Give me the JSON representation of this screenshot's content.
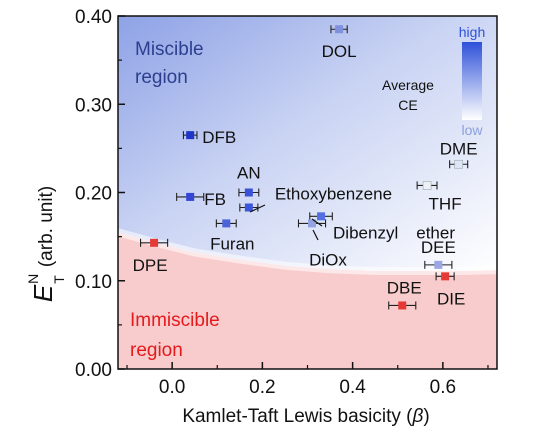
{
  "colors": {
    "high_low_bar_top": "#2e51d9",
    "high_low_bar_bottom": "#ffffff",
    "miscible_label": "#2c3f8f",
    "immiscible_label": "#e41a1c",
    "immiscible_fill": "#f8cccc",
    "pink_marker": "#e53935"
  },
  "chart_data": {
    "type": "scatter",
    "xlabel_prefix": "Kamlet-Taft Lewis basicity (",
    "xlabel_beta": "β",
    "xlabel_suffix": ")",
    "ylabel_main": "E",
    "ylabel_sup": "N",
    "ylabel_sub": "T",
    "ylabel_unit": "(arb. unit)",
    "xlim": [
      -0.12,
      0.72
    ],
    "ylim": [
      0.0,
      0.4
    ],
    "x_ticks": [
      0.0,
      0.2,
      0.4,
      0.6
    ],
    "x_tick_labels": [
      "0.0",
      "0.2",
      "0.4",
      "0.6"
    ],
    "y_ticks": [
      0.0,
      0.1,
      0.2,
      0.3,
      0.4
    ],
    "y_tick_labels": [
      "0.00",
      "0.10",
      "0.20",
      "0.30",
      "0.40"
    ],
    "regions": {
      "miscible_line1": "Miscible",
      "miscible_line2": "region",
      "immiscible_line1": "Immiscible",
      "immiscible_line2": "region"
    },
    "colorbar": {
      "title_line1": "Average",
      "title_line2": "CE",
      "high_label": "high",
      "low_label": "low"
    },
    "boundary_curve": [
      [
        -0.12,
        0.155
      ],
      [
        -0.05,
        0.145
      ],
      [
        0.05,
        0.132
      ],
      [
        0.15,
        0.124
      ],
      [
        0.25,
        0.117
      ],
      [
        0.35,
        0.113
      ],
      [
        0.45,
        0.111
      ],
      [
        0.55,
        0.111
      ],
      [
        0.65,
        0.111
      ],
      [
        0.72,
        0.112
      ]
    ],
    "points": [
      {
        "label": "DOL",
        "x": 0.37,
        "y": 0.385,
        "xerr": 0.018,
        "color": "#8090dd",
        "label_dx": 0,
        "label_dy": 28,
        "anchor": "middle"
      },
      {
        "label": "DFB",
        "x": 0.04,
        "y": 0.265,
        "xerr": 0.015,
        "color": "#1f35c9",
        "label_dx": 12,
        "label_dy": 8,
        "anchor": "start"
      },
      {
        "label": "DME",
        "x": 0.635,
        "y": 0.232,
        "xerr": 0.02,
        "color": "#e0e4f5",
        "label_dx": 0,
        "label_dy": -10,
        "anchor": "middle"
      },
      {
        "label": "AN",
        "x": 0.17,
        "y": 0.2,
        "xerr": 0.022,
        "color": "#3a52d8",
        "label_dx": 0,
        "label_dy": -14,
        "anchor": "middle"
      },
      {
        "label": "FB",
        "x": 0.04,
        "y": 0.195,
        "xerr": 0.03,
        "color": "#3446d6",
        "label_dx": 14,
        "label_dy": 8,
        "anchor": "start"
      },
      {
        "label": "Ethoxybenzene",
        "x": 0.17,
        "y": 0.183,
        "xerr": 0.02,
        "color": "#3b56da",
        "label_dx": 26,
        "label_dy": -8,
        "anchor": "start"
      },
      {
        "label": "THF",
        "x": 0.565,
        "y": 0.208,
        "xerr": 0.022,
        "color": "#eef0f8",
        "label_dx": 18,
        "label_dy": 24,
        "anchor": "middle"
      },
      {
        "label": "Furan",
        "x": 0.12,
        "y": 0.165,
        "xerr": 0.022,
        "color": "#4a63db",
        "label_dx": 6,
        "label_dy": 26,
        "anchor": "middle"
      },
      {
        "label": "Dibenzyl ether",
        "x": 0.33,
        "y": 0.173,
        "xerr": 0.025,
        "color": "#5570e0",
        "label_dx": 12,
        "label_dy": 24,
        "anchor": "start"
      },
      {
        "label": "DiOx",
        "x": 0.31,
        "y": 0.165,
        "xerr": 0.03,
        "color": "#93a3e2",
        "label_dx": 16,
        "label_dy": 42,
        "anchor": "middle"
      },
      {
        "label": "DEE",
        "x": 0.59,
        "y": 0.118,
        "xerr": 0.03,
        "color": "#9aa7e4",
        "label_dx": 0,
        "label_dy": -12,
        "anchor": "middle"
      },
      {
        "label": "DBE",
        "x": 0.51,
        "y": 0.072,
        "xerr": 0.03,
        "color": "#e53935",
        "label_dx": 2,
        "label_dy": -12,
        "anchor": "middle"
      },
      {
        "label": "DIE",
        "x": 0.605,
        "y": 0.105,
        "xerr": 0.02,
        "color": "#e53935",
        "label_dx": 6,
        "label_dy": 28,
        "anchor": "middle"
      },
      {
        "label": "DPE",
        "x": -0.04,
        "y": 0.143,
        "xerr": 0.03,
        "color": "#e53935",
        "label_dx": -4,
        "label_dy": 28,
        "anchor": "middle"
      }
    ]
  }
}
